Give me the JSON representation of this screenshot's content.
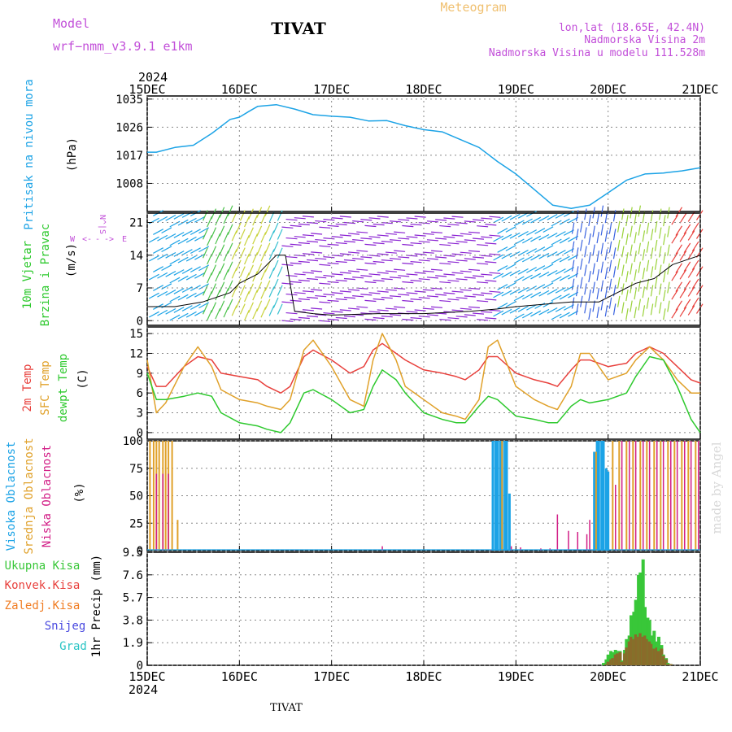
{
  "header": {
    "model_label": "Model",
    "model_name": "wrf−nmm_v3.9.1  e1km",
    "location": "TIVAT",
    "product": "Meteogram",
    "coords": "lon,lat (18.65E, 42.4N)",
    "elevation": "Nadmorska Visina 2m",
    "model_elevation": "Nadmorska Visina u modelu 111.528m",
    "credit": "made by Angel"
  },
  "footer": {
    "location": "TIVAT"
  },
  "colors": {
    "pressure": "#1ca3e6",
    "temp2m": "#e8403c",
    "sfc_temp": "#e0a12a",
    "dewpt": "#2ec92e",
    "high_cloud": "#1ca3e6",
    "mid_cloud": "#e0a12a",
    "low_cloud": "#d21e86",
    "total_rain": "#39c739",
    "conv_rain": "#e8403c",
    "freezing": "#f07c22",
    "snow": "#4a4ae0",
    "hail": "#29c4c4",
    "wind_purple": "#8a23d2",
    "wind_label": "#c24fd9"
  },
  "chart_data": [
    {
      "id": "pressure",
      "type": "line",
      "ylabel_lines": [
        "Pritisak na nivou mora",
        "(hPa)"
      ],
      "ylim": [
        999,
        1036
      ],
      "yticks": [
        1008,
        1017,
        1026,
        1035
      ],
      "x": [
        0,
        0.1,
        0.3,
        0.5,
        0.7,
        0.9,
        1.0,
        1.1,
        1.2,
        1.4,
        1.6,
        1.8,
        2.0,
        2.2,
        2.4,
        2.6,
        2.8,
        3.0,
        3.2,
        3.4,
        3.6,
        3.8,
        4.0,
        4.2,
        4.4,
        4.6,
        4.8,
        5.0,
        5.2,
        5.4,
        5.6,
        5.65,
        5.8,
        6.0
      ],
      "series": [
        {
          "values": [
            1018,
            1018,
            1019.5,
            1020.2,
            1024,
            1028.5,
            1029.2,
            1031,
            1032.7,
            1033.2,
            1031.8,
            1030,
            1029.5,
            1029.2,
            1028,
            1028.1,
            1026.5,
            1025.2,
            1024.5,
            1022,
            1019.5,
            1015,
            1011,
            1006,
            1001,
            1000,
            1001,
            1005,
            1009,
            1011,
            1011.3,
            1011.5,
            1012,
            1013
          ]
        }
      ]
    },
    {
      "id": "wind",
      "type": "line",
      "ylabel_lines": [
        "10m Vjetar",
        "Brzina i Pravac",
        "(m/s)"
      ],
      "compass": [
        "W",
        "<-",
        "-",
        "->",
        "E",
        "N",
        "^",
        "|",
        "S"
      ],
      "ylim": [
        -1,
        23
      ],
      "yticks": [
        0,
        7,
        14,
        21
      ],
      "x": [
        0,
        0.3,
        0.6,
        0.9,
        1.0,
        1.2,
        1.4,
        1.5,
        1.6,
        1.8,
        2.0,
        2.5,
        3.0,
        3.5,
        3.8,
        4.0,
        4.3,
        4.6,
        4.9,
        5.1,
        5.3,
        5.5,
        5.7,
        6.0
      ],
      "series": [
        {
          "name": "speed",
          "values": [
            3,
            3,
            4,
            6,
            8,
            10,
            14,
            14,
            2,
            1.5,
            1.2,
            1.5,
            1.5,
            2,
            2.5,
            3,
            3.5,
            4,
            4,
            6,
            8,
            9,
            12,
            14
          ]
        }
      ]
    },
    {
      "id": "temperature",
      "type": "line",
      "ylabel_lines": [
        "2m Temp",
        "SFC Temp",
        "dewpt Temp",
        "(C)"
      ],
      "ylim": [
        -1,
        16
      ],
      "yticks": [
        0,
        3,
        6,
        9,
        12,
        15
      ],
      "x": [
        0,
        0.1,
        0.2,
        0.4,
        0.55,
        0.7,
        0.8,
        1.0,
        1.2,
        1.3,
        1.45,
        1.55,
        1.7,
        1.8,
        2.0,
        2.2,
        2.35,
        2.45,
        2.55,
        2.7,
        2.8,
        3.0,
        3.2,
        3.35,
        3.45,
        3.6,
        3.7,
        3.8,
        4.0,
        4.2,
        4.35,
        4.45,
        4.6,
        4.7,
        4.8,
        5.0,
        5.2,
        5.3,
        5.45,
        5.6,
        5.75,
        5.9,
        6.0
      ],
      "series": [
        {
          "name": "2m Temp",
          "values": [
            10,
            7,
            7,
            10,
            11.5,
            11,
            9,
            8.5,
            8,
            7,
            6,
            7,
            11.5,
            12.5,
            11,
            9,
            10,
            12.5,
            13.5,
            12,
            11,
            9.5,
            9,
            8.5,
            8,
            9.5,
            11.5,
            11.5,
            9,
            8,
            7.5,
            7,
            9.5,
            11,
            11,
            10,
            10.5,
            12,
            13,
            12,
            10,
            8,
            7.5
          ]
        },
        {
          "name": "SFC Temp",
          "values": [
            11,
            3,
            4.5,
            10,
            13,
            10,
            6.5,
            5,
            4.5,
            4,
            3.5,
            5,
            12.5,
            14,
            10,
            5,
            4,
            11,
            15,
            11,
            7,
            5,
            3,
            2.5,
            2,
            5,
            13,
            14,
            7,
            5,
            4,
            3.5,
            7,
            12,
            12,
            8,
            9,
            11,
            13,
            11,
            8,
            6,
            6
          ]
        },
        {
          "name": "dewpt Temp",
          "values": [
            9,
            5,
            5,
            5.5,
            6,
            5.5,
            3,
            1.5,
            1,
            0.5,
            0,
            1.5,
            6,
            6.5,
            5,
            3,
            3.5,
            7,
            9.5,
            8,
            6,
            3,
            2,
            1.5,
            1.5,
            4,
            5.5,
            5,
            2.5,
            2,
            1.5,
            1.5,
            4,
            5,
            4.5,
            5,
            6,
            8.5,
            11.5,
            11,
            7,
            2,
            0
          ]
        }
      ]
    },
    {
      "id": "cloud",
      "type": "bar",
      "ylabel_lines": [
        "Visoka Oblacnost",
        "Srednja Oblacnost",
        "Niska Oblacnost",
        "(%)"
      ],
      "ylim": [
        0,
        100
      ],
      "yticks": [
        0,
        25,
        50,
        75,
        100
      ],
      "series": [
        {
          "name": "Visoka Oblacnost",
          "x": [
            3.75,
            3.78,
            3.8,
            3.83,
            3.85,
            3.88,
            3.9,
            3.93,
            4.85,
            4.88,
            4.9,
            4.93,
            4.95,
            4.98,
            5.0
          ],
          "values": [
            100,
            100,
            100,
            100,
            100,
            100,
            100,
            52,
            90,
            100,
            100,
            100,
            100,
            75,
            72
          ]
        },
        {
          "name": "Srednja Oblacnost",
          "x": [
            0.03,
            0.07,
            0.1,
            0.13,
            0.17,
            0.2,
            0.23,
            0.27,
            0.33,
            3.85,
            4.87,
            5.05,
            5.12,
            5.2,
            5.27,
            5.35,
            5.42,
            5.5,
            5.57,
            5.65,
            5.72,
            5.8,
            5.87,
            5.95
          ],
          "values": [
            100,
            100,
            100,
            100,
            100,
            100,
            100,
            100,
            28,
            100,
            90,
            100,
            100,
            100,
            100,
            100,
            100,
            100,
            100,
            100,
            100,
            100,
            100,
            100
          ]
        },
        {
          "name": "Niska Oblacnost",
          "x": [
            0.1,
            0.17,
            0.23,
            1.6,
            2.55,
            3.48,
            3.6,
            3.73,
            3.95,
            4.05,
            4.27,
            4.37,
            4.45,
            4.57,
            4.67,
            4.77,
            4.8,
            5.08,
            5.15,
            5.23,
            5.3,
            5.38,
            5.45,
            5.53,
            5.6,
            5.68,
            5.75,
            5.83,
            5.9,
            5.98
          ],
          "values": [
            70,
            70,
            70,
            1,
            4,
            1,
            1,
            1,
            4,
            3,
            2,
            2,
            33,
            18,
            17,
            15,
            28,
            60,
            100,
            100,
            100,
            100,
            100,
            100,
            100,
            100,
            100,
            100,
            100,
            100
          ]
        }
      ]
    },
    {
      "id": "precip",
      "type": "bar",
      "ylabel_lines": [
        "1hr Precip (mm)"
      ],
      "legend": [
        "Ukupna Kisa",
        "Konvek.Kisa",
        "Zaledj.Kisa",
        "Snijeg",
        "Grad"
      ],
      "ylim": [
        0,
        9.5
      ],
      "yticks": [
        0,
        1.9,
        3.8,
        5.7,
        7.6,
        9.5
      ],
      "x": [
        4.95,
        4.98,
        5.0,
        5.03,
        5.05,
        5.08,
        5.1,
        5.13,
        5.15,
        5.18,
        5.2,
        5.23,
        5.25,
        5.28,
        5.3,
        5.33,
        5.35,
        5.38,
        5.4,
        5.43,
        5.45,
        5.48,
        5.5,
        5.53,
        5.55,
        5.58,
        5.6,
        5.63,
        5.65,
        5.68
      ],
      "series": [
        {
          "name": "Ukupna Kisa",
          "values": [
            0.2,
            0.5,
            0.9,
            1.2,
            1.1,
            1.3,
            1.2,
            1.2,
            0.4,
            1.3,
            2.2,
            2.5,
            4.2,
            4.5,
            5.5,
            7.6,
            7.8,
            8.9,
            4.9,
            4.0,
            3.8,
            2.5,
            2.9,
            2.0,
            2.4,
            1.7,
            0.9,
            0.6,
            0.2,
            0.1
          ]
        },
        {
          "name": "Konvek.Kisa",
          "values": [
            0,
            0.1,
            0.3,
            0.5,
            0.6,
            0.9,
            1.0,
            1.1,
            0.3,
            1.0,
            1.5,
            2.0,
            2.4,
            2.2,
            2.6,
            2.4,
            2.7,
            2.4,
            2.5,
            2.2,
            2.0,
            1.8,
            1.4,
            1.5,
            1.2,
            1.4,
            0.8,
            0.5,
            0.1,
            0.1
          ]
        }
      ]
    }
  ],
  "x_axis": {
    "top_year": "2024",
    "bottom_year": "2024",
    "labels": [
      "15DEC",
      "16DEC",
      "17DEC",
      "18DEC",
      "19DEC",
      "20DEC",
      "21DEC"
    ]
  }
}
